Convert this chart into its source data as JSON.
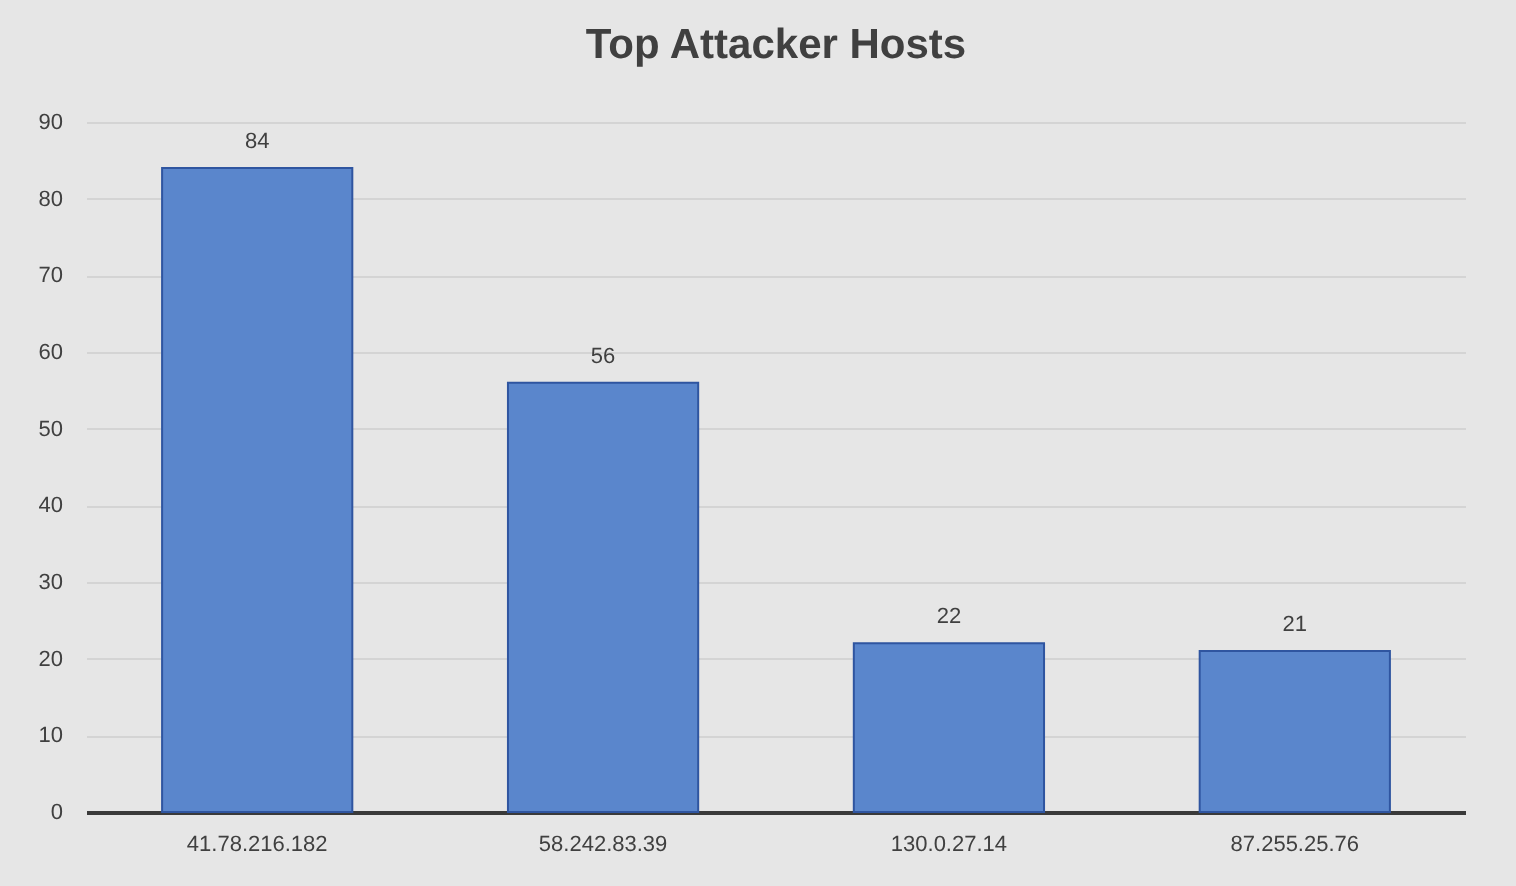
{
  "chart_data": {
    "type": "bar",
    "title": "Top Attacker Hosts",
    "categories": [
      "41.78.216.182",
      "58.242.83.39",
      "130.0.27.14",
      "87.255.25.76"
    ],
    "values": [
      84,
      56,
      22,
      21
    ],
    "color": "#5a86cc",
    "ylim": [
      0,
      90
    ],
    "yticks": [
      0,
      10,
      20,
      30,
      40,
      50,
      60,
      70,
      80,
      90
    ],
    "grid": "y",
    "data_labels": true
  }
}
